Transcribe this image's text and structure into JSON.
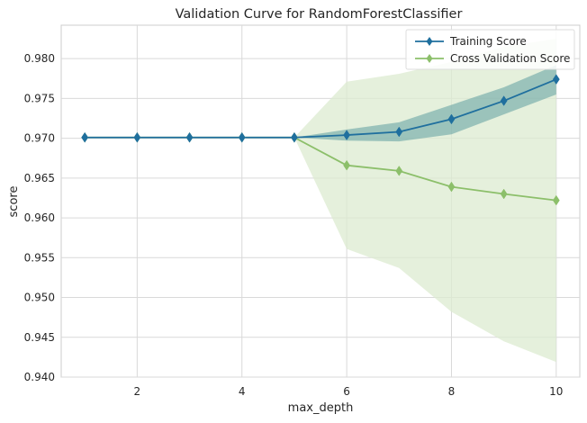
{
  "chart_data": {
    "type": "line",
    "title": "Validation Curve for RandomForestClassifier",
    "xlabel": "max_depth",
    "ylabel": "score",
    "xlim": [
      0.55,
      10.45
    ],
    "ylim": [
      0.94,
      0.9842
    ],
    "xticks": [
      2,
      4,
      6,
      8,
      10
    ],
    "yticks": [
      0.94,
      0.945,
      0.95,
      0.955,
      0.96,
      0.965,
      0.97,
      0.975,
      0.98
    ],
    "ytick_labels": [
      "0.940",
      "0.945",
      "0.950",
      "0.955",
      "0.960",
      "0.965",
      "0.970",
      "0.975",
      "0.980"
    ],
    "grid": true,
    "legend_position": "top-right",
    "x": [
      1,
      2,
      3,
      4,
      5,
      6,
      7,
      8,
      9,
      10
    ],
    "series": [
      {
        "name": "Training Score",
        "color": "#1f6f9e",
        "band_color": "#5e9ea0",
        "values": [
          0.9701,
          0.9701,
          0.9701,
          0.9701,
          0.9701,
          0.9704,
          0.9708,
          0.9724,
          0.9747,
          0.9774
        ],
        "lower": [
          0.9701,
          0.9701,
          0.9701,
          0.9701,
          0.9701,
          0.9697,
          0.9696,
          0.9705,
          0.973,
          0.9755
        ],
        "upper": [
          0.9701,
          0.9701,
          0.9701,
          0.9701,
          0.9701,
          0.9711,
          0.972,
          0.9742,
          0.9764,
          0.9792
        ]
      },
      {
        "name": "Cross Validation Score",
        "color": "#8cbf6a",
        "band_color": "#dcebd0",
        "values": [
          0.9701,
          0.9701,
          0.9701,
          0.9701,
          0.9701,
          0.9666,
          0.9659,
          0.9639,
          0.963,
          0.9622
        ],
        "lower": [
          0.9701,
          0.9701,
          0.9701,
          0.9701,
          0.9701,
          0.9561,
          0.9537,
          0.9482,
          0.9445,
          0.9419
        ],
        "upper": [
          0.9701,
          0.9701,
          0.9701,
          0.9701,
          0.9701,
          0.9771,
          0.9781,
          0.9796,
          0.9815,
          0.9825
        ]
      }
    ]
  }
}
